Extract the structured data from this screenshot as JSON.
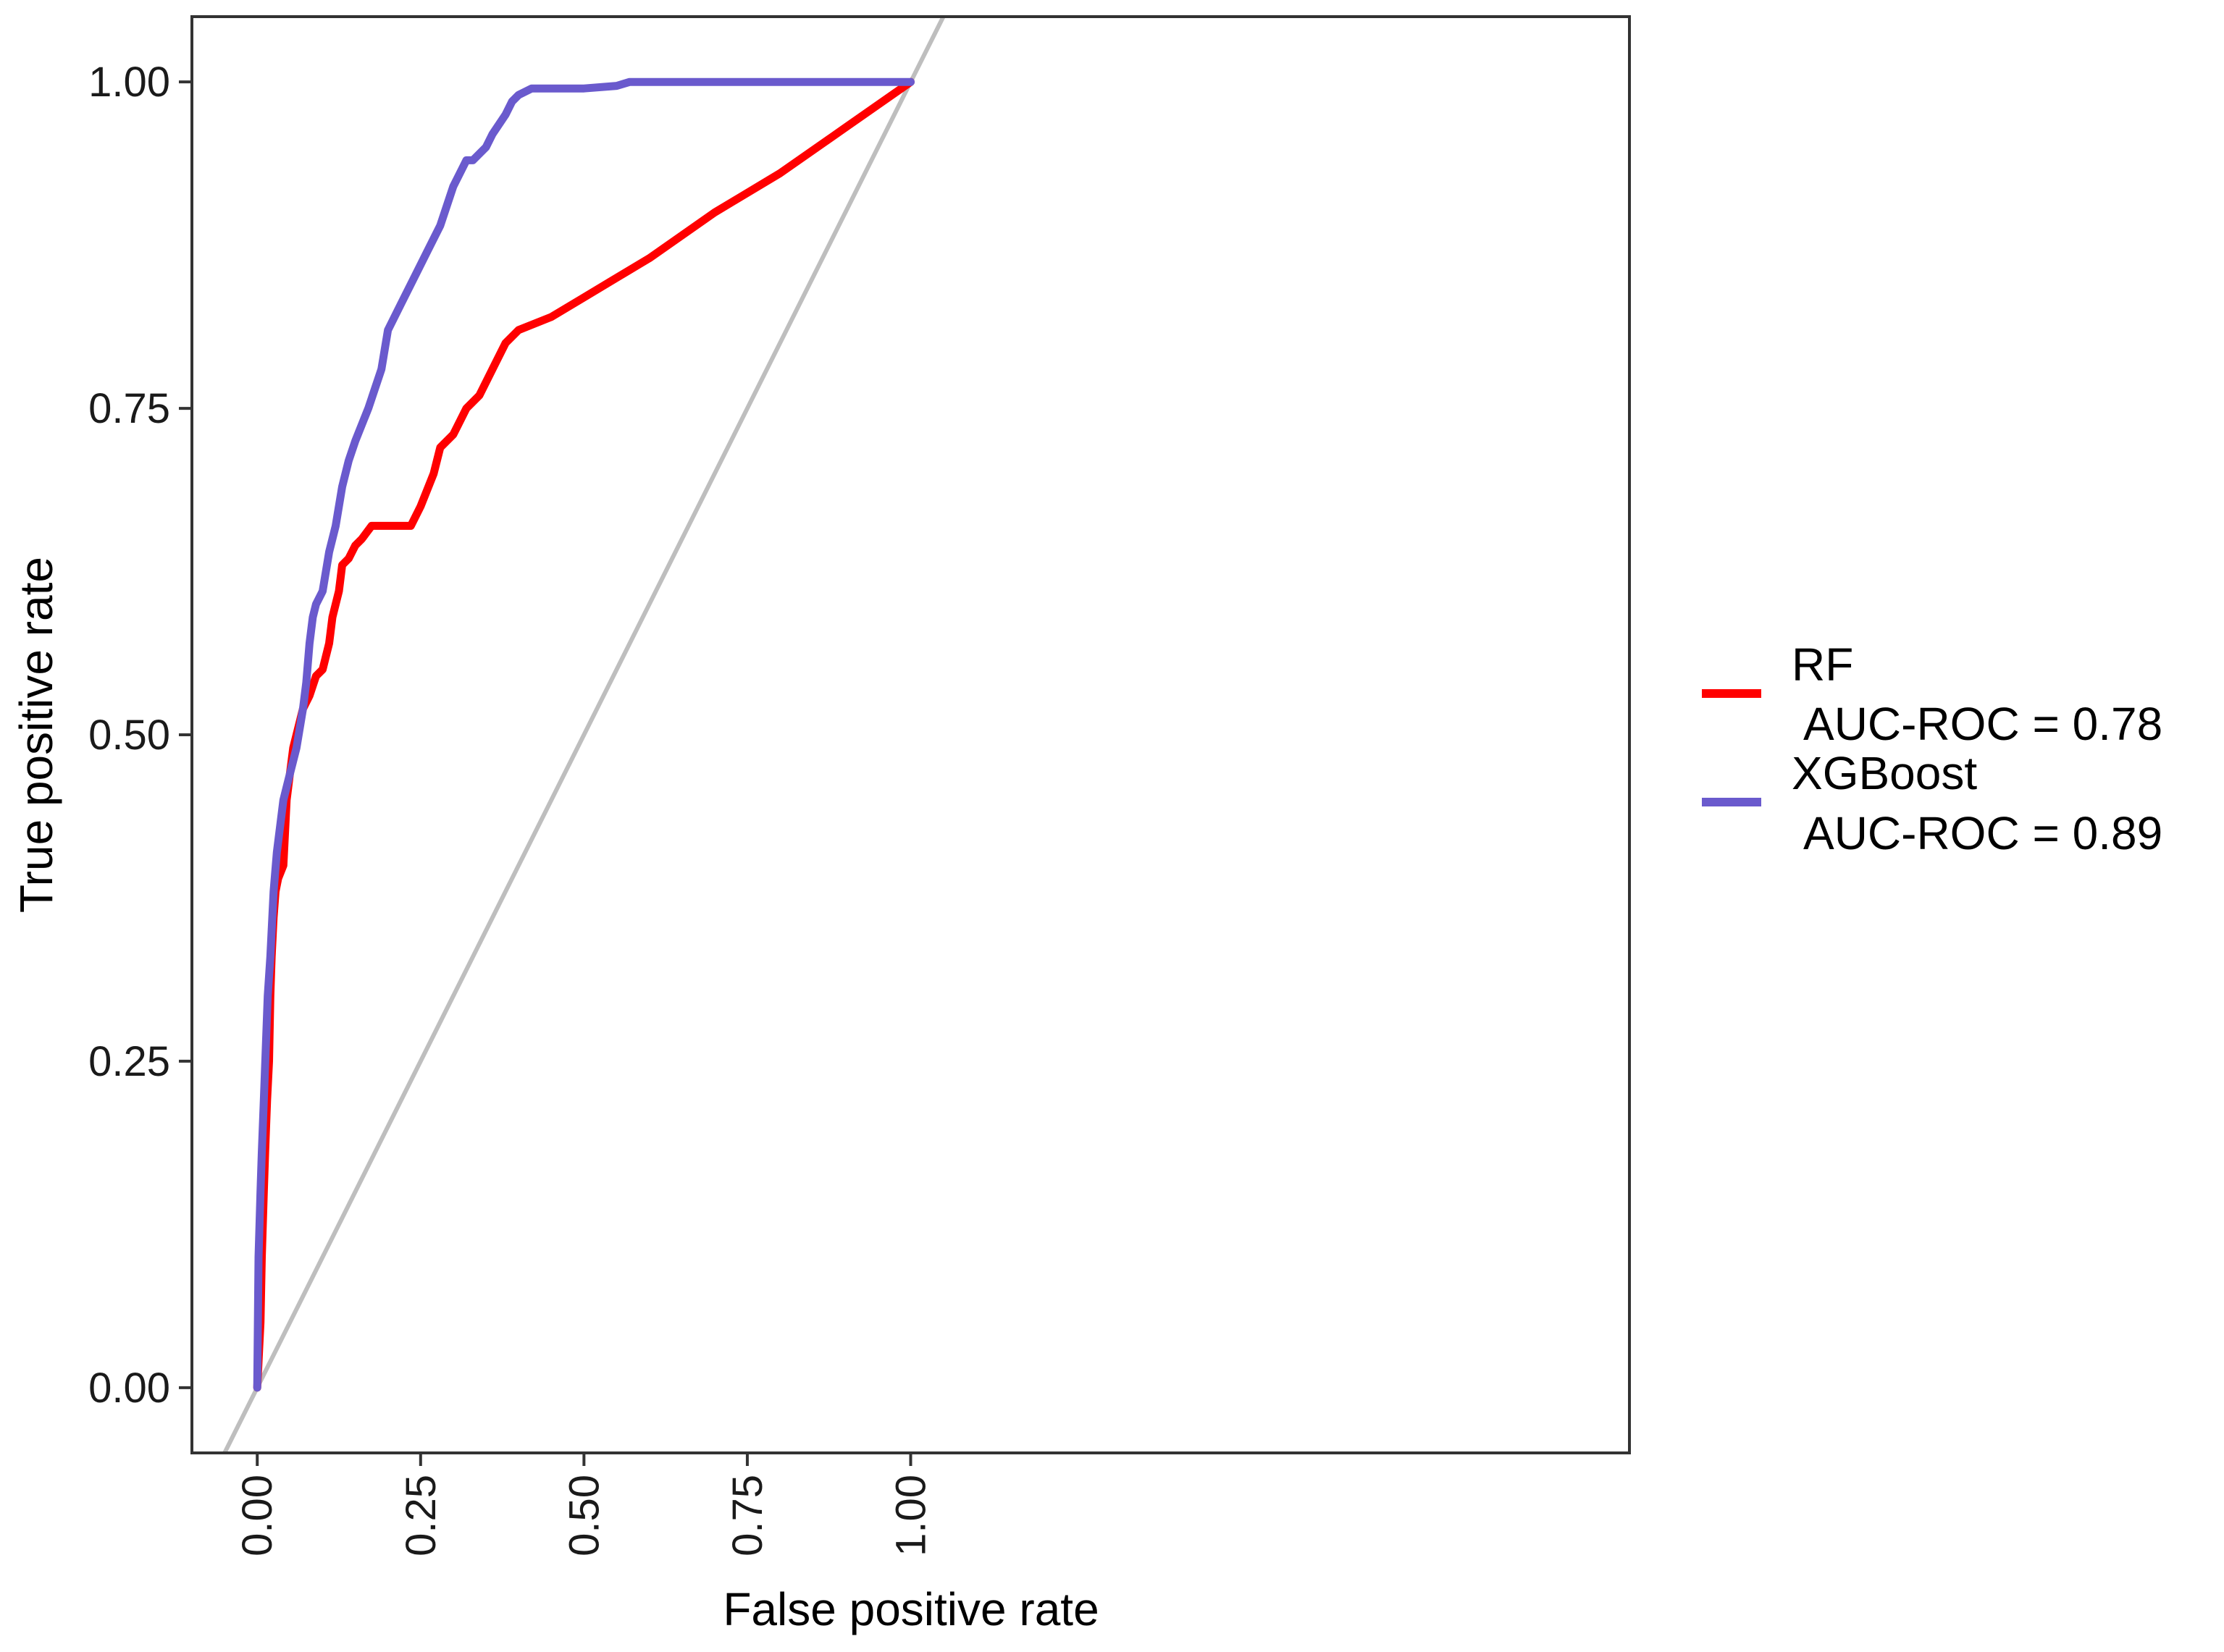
{
  "chart_data": {
    "type": "line",
    "title": "",
    "xlabel": "False positive rate",
    "ylabel": "True positive rate",
    "xlim": [
      -0.1,
      2.1
    ],
    "ylim": [
      -0.05,
      1.05
    ],
    "x_ticks": [
      0.0,
      0.25,
      0.5,
      0.75,
      1.0
    ],
    "x_tick_labels": [
      "0.00",
      "0.25",
      "0.50",
      "0.75",
      "1.00"
    ],
    "y_ticks": [
      0.0,
      0.25,
      0.5,
      0.75,
      1.0
    ],
    "y_tick_labels": [
      "0.00",
      "0.25",
      "0.50",
      "0.75",
      "1.00"
    ],
    "grid": false,
    "legend_position": "right",
    "reference_line": {
      "name": "chance diagonal",
      "color": "#bebebe",
      "x": [
        0,
        1
      ],
      "y": [
        0,
        1
      ]
    },
    "series": [
      {
        "name": "RF",
        "auc_label": "AUC-ROC = 0.78",
        "color": "#ff0000",
        "x": [
          0.0,
          0.005,
          0.007,
          0.01,
          0.012,
          0.015,
          0.018,
          0.02,
          0.022,
          0.025,
          0.028,
          0.032,
          0.04,
          0.045,
          0.05,
          0.055,
          0.06,
          0.07,
          0.08,
          0.09,
          0.1,
          0.11,
          0.115,
          0.12,
          0.125,
          0.13,
          0.14,
          0.15,
          0.16,
          0.175,
          0.19,
          0.21,
          0.235,
          0.25,
          0.27,
          0.28,
          0.3,
          0.32,
          0.34,
          0.36,
          0.38,
          0.4,
          0.45,
          0.5,
          0.55,
          0.6,
          0.7,
          0.8,
          0.9,
          1.0
        ],
        "y": [
          0.0,
          0.05,
          0.1,
          0.15,
          0.18,
          0.22,
          0.25,
          0.3,
          0.33,
          0.36,
          0.38,
          0.39,
          0.4,
          0.45,
          0.47,
          0.49,
          0.5,
          0.52,
          0.53,
          0.545,
          0.55,
          0.57,
          0.59,
          0.6,
          0.61,
          0.63,
          0.635,
          0.645,
          0.65,
          0.66,
          0.66,
          0.66,
          0.66,
          0.675,
          0.7,
          0.72,
          0.73,
          0.75,
          0.76,
          0.78,
          0.8,
          0.81,
          0.82,
          0.835,
          0.85,
          0.865,
          0.9,
          0.93,
          0.965,
          1.0
        ]
      },
      {
        "name": "XGBoost",
        "auc_label": "AUC-ROC = 0.89",
        "color": "#6a5acd",
        "x": [
          0.0,
          0.002,
          0.005,
          0.007,
          0.01,
          0.013,
          0.016,
          0.02,
          0.025,
          0.03,
          0.035,
          0.04,
          0.045,
          0.05,
          0.06,
          0.07,
          0.075,
          0.08,
          0.085,
          0.09,
          0.1,
          0.11,
          0.12,
          0.13,
          0.14,
          0.15,
          0.17,
          0.19,
          0.2,
          0.22,
          0.24,
          0.26,
          0.28,
          0.3,
          0.32,
          0.33,
          0.35,
          0.36,
          0.38,
          0.39,
          0.4,
          0.42,
          0.43,
          0.45,
          0.5,
          0.55,
          0.57,
          0.6,
          0.7,
          0.8,
          0.9,
          1.0
        ],
        "y": [
          0.0,
          0.1,
          0.15,
          0.18,
          0.22,
          0.26,
          0.3,
          0.33,
          0.38,
          0.41,
          0.43,
          0.45,
          0.46,
          0.47,
          0.49,
          0.52,
          0.54,
          0.57,
          0.59,
          0.6,
          0.61,
          0.64,
          0.66,
          0.69,
          0.71,
          0.725,
          0.75,
          0.78,
          0.81,
          0.83,
          0.85,
          0.87,
          0.89,
          0.92,
          0.94,
          0.94,
          0.95,
          0.96,
          0.975,
          0.985,
          0.99,
          0.995,
          0.995,
          0.995,
          0.995,
          0.997,
          1.0,
          1.0,
          1.0,
          1.0,
          1.0,
          1.0
        ]
      }
    ]
  }
}
